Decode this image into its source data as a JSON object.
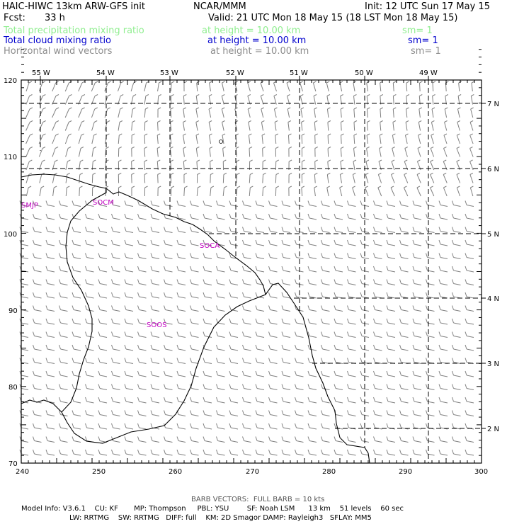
{
  "header": {
    "model": "HAIC-HIWC 13km ARW-GFS init",
    "org": "NCAR/MMM",
    "init": "Init: 12 UTC Sun 17 May 15",
    "fcst_label": "Fcst:",
    "fcst_value": "33 h",
    "valid": "Valid: 21 UTC Mon 18 May 15 (18 LST Mon 18 May 15)"
  },
  "fields": [
    {
      "name": "Total precipitation mixing ratio",
      "height": "at height = 10.00 km",
      "sm": "sm= 1",
      "color": "#90ee90"
    },
    {
      "name": "Total cloud mixing ratio",
      "height": "at height = 10.00 km",
      "sm": "sm= 1",
      "color": "#0000cd"
    },
    {
      "name": "Horizontal wind vectors",
      "height": "at height = 10.00 km",
      "sm": "sm= 1",
      "color": "#8c8c8c"
    }
  ],
  "map": {
    "lon_labels": [
      "55 W",
      "54 W",
      "53 W",
      "52 W",
      "51 W",
      "50 W",
      "49 W"
    ],
    "lat_labels": [
      "7 N",
      "6 N",
      "5 N",
      "4 N",
      "3 N",
      "2 N"
    ],
    "x_ticks": [
      "240",
      "250",
      "260",
      "270",
      "280",
      "290",
      "300"
    ],
    "y_ticks": [
      "120",
      "110",
      "100",
      "90",
      "80",
      "70"
    ],
    "stations": [
      {
        "id": "SMJP",
        "color": "#c000c0"
      },
      {
        "id": "SOCM",
        "color": "#c000c0"
      },
      {
        "id": "SOCA",
        "color": "#c000c0"
      },
      {
        "id": "SOOS",
        "color": "#c000c0"
      }
    ],
    "barb_color": "#808080"
  },
  "footer": {
    "barb_note": "BARB VECTORS:  FULL BARB = 10 kts",
    "line1": "Model Info: V3.6.1    CU: KF       MP: Thompson     PBL: YSU        SF: Noah LSM      13 km    51 levels    60 sec",
    "line2": "LW: RRTMG    SW: RRTMG   DIFF: full    KM: 2D Smagor DAMP: Rayleigh3   SFLAY: MM5"
  }
}
